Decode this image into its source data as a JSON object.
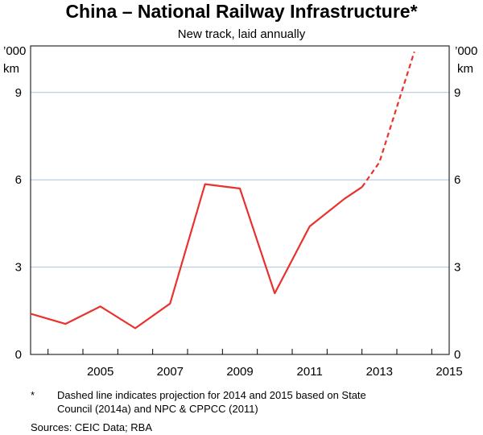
{
  "chart_data": {
    "type": "line",
    "title": "China – National Railway Infrastructure*",
    "subtitle": "New track, laid annually",
    "y_unit_line1": "’000",
    "y_unit_line2": "km",
    "xlim": [
      2003.5,
      2015.5
    ],
    "ylim": [
      0,
      10.6
    ],
    "x_ticks": [
      2005,
      2007,
      2009,
      2011,
      2013,
      2015
    ],
    "y_ticks": [
      0,
      3,
      6,
      9
    ],
    "grid": true,
    "series": [
      {
        "color": "#e8322d",
        "style": "solid",
        "x": [
          2003.5,
          2004.5,
          2005.5,
          2006.5,
          2007.5,
          2008.5,
          2009.5,
          2010.5,
          2011.5,
          2012.5,
          2013
        ],
        "values": [
          1.4,
          1.05,
          1.65,
          0.9,
          1.75,
          5.85,
          5.7,
          2.1,
          4.4,
          5.35,
          5.75
        ]
      },
      {
        "color": "#e8322d",
        "style": "dashed",
        "x": [
          2013,
          2013.5,
          2014.5
        ],
        "values": [
          5.75,
          6.6,
          10.4
        ]
      }
    ],
    "footnote_marker": "*",
    "footnote_text_line1": "Dashed line indicates projection for 2014 and 2015 based on State",
    "footnote_text_line2": "Council (2014a) and NPC & CPPCC (2011)",
    "sources": "Sources:  CEIC Data; RBA"
  }
}
